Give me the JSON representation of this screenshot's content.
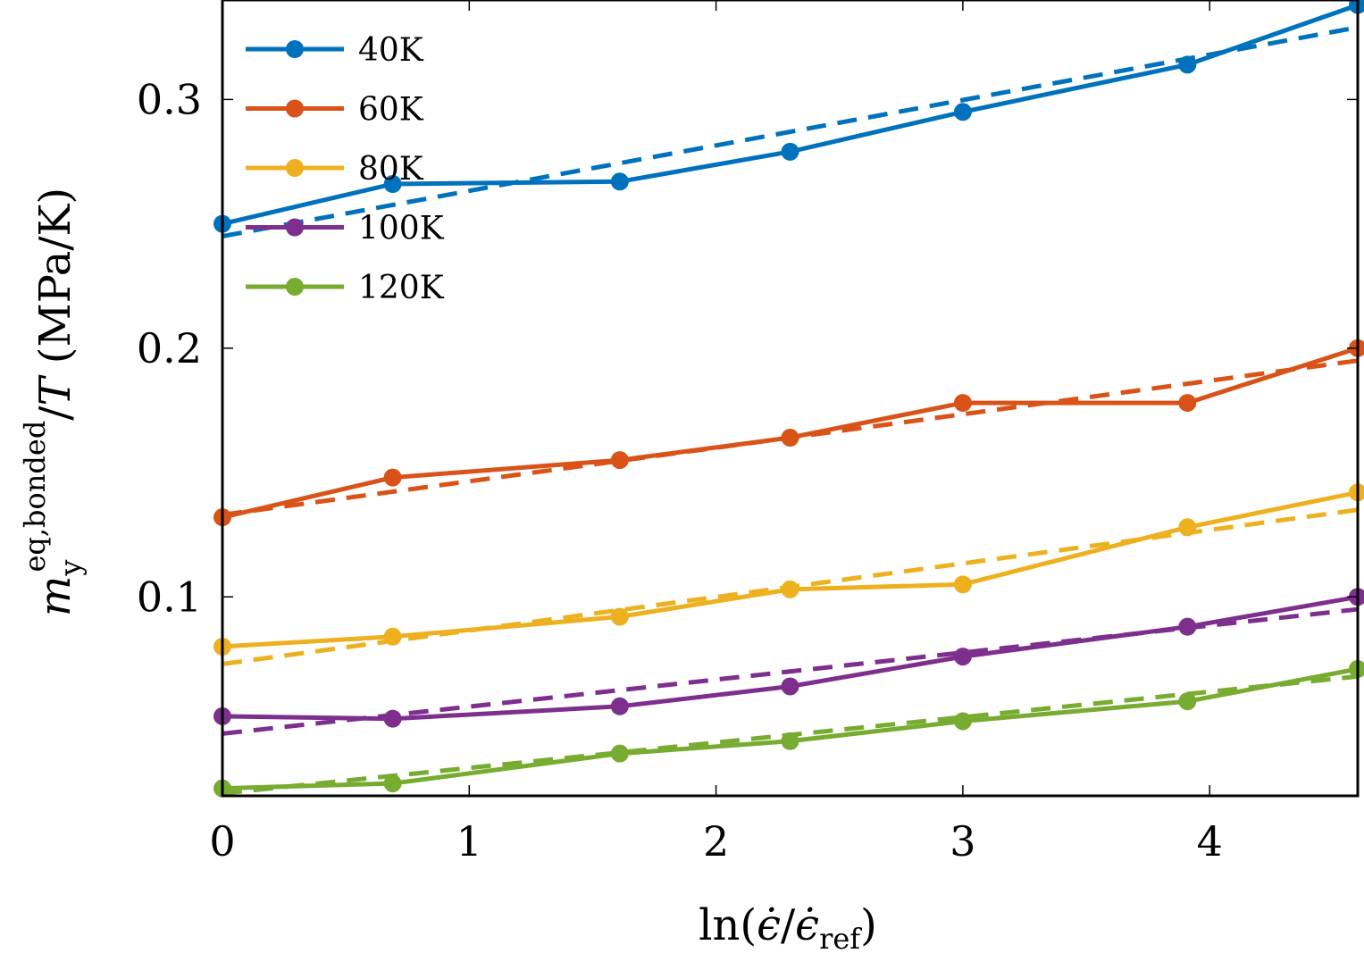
{
  "chart_data": {
    "type": "line",
    "xlabel": "ln(ϵ̇/ϵ̇ref)",
    "ylabel": "m_y^{eq,bonded}/T (MPa/K)",
    "xlim": [
      0,
      4.6
    ],
    "ylim": [
      0.02,
      0.34
    ],
    "xticks": [
      0,
      1,
      2,
      3,
      4
    ],
    "yticks": [
      0.1,
      0.2,
      0.3
    ],
    "xtick_labels": [
      "0",
      "1",
      "2",
      "3",
      "4"
    ],
    "ytick_labels": [
      "0.1",
      "0.2",
      "0.3"
    ],
    "legend_position": "top-left",
    "grid": false,
    "x": [
      0,
      0.69,
      1.61,
      2.3,
      3.0,
      3.91,
      4.6
    ],
    "series": [
      {
        "name": "40K",
        "color": "#0072BD",
        "values": [
          0.25,
          0.266,
          0.267,
          0.279,
          0.295,
          0.314,
          0.338
        ],
        "fit": [
          0.245,
          0.329
        ]
      },
      {
        "name": "60K",
        "color": "#D95319",
        "values": [
          0.132,
          0.148,
          0.155,
          0.164,
          0.178,
          0.178,
          0.2
        ],
        "fit": [
          0.133,
          0.195
        ]
      },
      {
        "name": "80K",
        "color": "#EDB120",
        "values": [
          0.08,
          0.084,
          0.092,
          0.103,
          0.105,
          0.128,
          0.142
        ],
        "fit": [
          0.073,
          0.135
        ]
      },
      {
        "name": "100K",
        "color": "#7E2F8E",
        "values": [
          0.052,
          0.051,
          0.056,
          0.064,
          0.076,
          0.088,
          0.1
        ],
        "fit": [
          0.045,
          0.095
        ]
      },
      {
        "name": "120K",
        "color": "#77AC30",
        "values": [
          0.023,
          0.025,
          0.037,
          0.042,
          0.05,
          0.058,
          0.071
        ],
        "fit": [
          0.021,
          0.068
        ]
      }
    ]
  }
}
